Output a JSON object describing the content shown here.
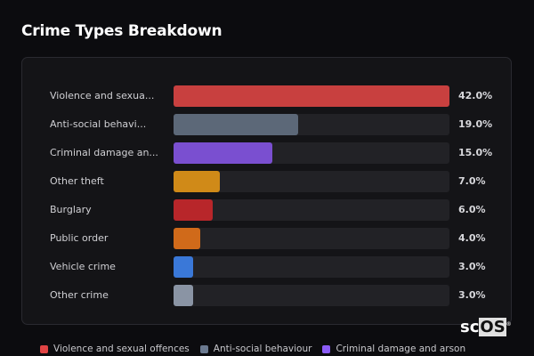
{
  "chart_data": {
    "type": "bar",
    "orientation": "horizontal",
    "title": "Crime Types Breakdown",
    "unit": "%",
    "xlim": [
      0,
      42
    ],
    "categories": [
      "Violence and sexua...",
      "Anti-social behavi...",
      "Criminal damage an...",
      "Other theft",
      "Burglary",
      "Public order",
      "Vehicle crime",
      "Other crime"
    ],
    "values": [
      42.0,
      19.0,
      15.0,
      7.0,
      6.0,
      4.0,
      3.0,
      3.0
    ],
    "value_labels": [
      "42.0%",
      "19.0%",
      "15.0%",
      "7.0%",
      "6.0%",
      "4.0%",
      "3.0%",
      "3.0%"
    ],
    "colors": [
      "#c8403f",
      "#5c6878",
      "#7a4fd0",
      "#d08a18",
      "#b8262a",
      "#d06a1a",
      "#3a78d8",
      "#8a94a4"
    ],
    "legend": [
      {
        "label": "Violence and sexual offences",
        "color": "#e04444"
      },
      {
        "label": "Anti-social behaviour",
        "color": "#6b7a90"
      },
      {
        "label": "Criminal damage and arson",
        "color": "#8b5cf6"
      }
    ],
    "legend_position": "bottom"
  },
  "logo": {
    "sc": "sc",
    "os": "OS",
    "reg": "®"
  }
}
